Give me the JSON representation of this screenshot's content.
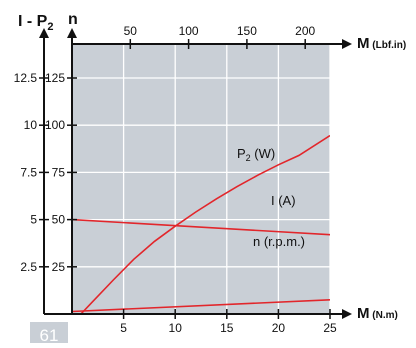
{
  "chart_data": {
    "type": "line",
    "title": "",
    "left_axis_labels": {
      "current_power": "I - P",
      "current_power_subscript": "2",
      "speed": "n"
    },
    "x_bottom": {
      "label": "M",
      "unit": "(N.m)",
      "range": [
        0,
        25
      ],
      "ticks": [
        5,
        10,
        15,
        20,
        25
      ]
    },
    "x_top": {
      "label": "M",
      "unit": "(Lbf.in)",
      "ticks": [
        50,
        100,
        150,
        200
      ]
    },
    "y_left_outer": {
      "range": [
        0,
        12.5
      ],
      "ticks": [
        2.5,
        5,
        7.5,
        10,
        12.5
      ]
    },
    "y_left_inner": {
      "range": [
        0,
        125
      ],
      "ticks": [
        25,
        50,
        75,
        100,
        125
      ]
    },
    "series": [
      {
        "name": "P",
        "name_subscript": "2",
        "name_suffix": " (W)",
        "color": "#e2262b",
        "x": [
          0,
          2,
          4,
          6,
          8,
          10,
          12,
          14,
          16,
          18,
          20,
          22,
          25
        ],
        "y": [
          -5,
          6.5,
          18,
          29,
          38.5,
          46.5,
          54,
          61,
          67.5,
          73.5,
          79,
          84,
          94.5
        ]
      },
      {
        "name": "I (A)",
        "color": "#e2262b",
        "x": [
          0,
          25
        ],
        "y": [
          1.3,
          7.5
        ]
      },
      {
        "name": "n (r.p.m.)",
        "color": "#e2262b",
        "x": [
          0,
          25
        ],
        "y": [
          50,
          42
        ]
      }
    ],
    "grid": true
  },
  "badge": {
    "text": "61"
  },
  "colors": {
    "plot_background": "#c9cfd6",
    "grid": "#ffffff",
    "axis": "#111111",
    "series": "#e2262b",
    "badge": "#c9cfd6"
  }
}
